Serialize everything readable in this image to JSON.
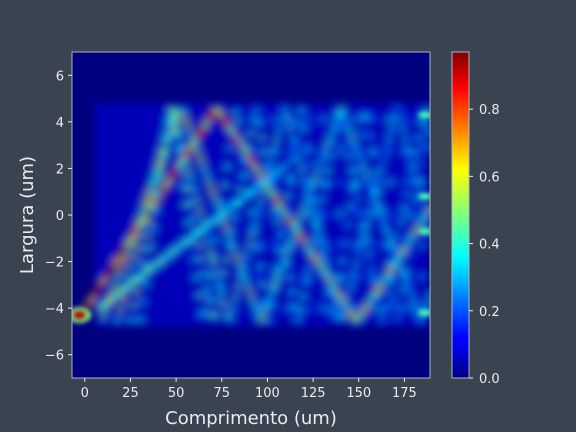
{
  "chart_data": {
    "type": "heatmap",
    "xlabel": "Comprimento (um)",
    "ylabel": "Largura (um)",
    "xlim": [
      -7,
      189
    ],
    "ylim": [
      -7,
      7
    ],
    "x_ticks": [
      0,
      25,
      50,
      75,
      100,
      125,
      150,
      175
    ],
    "y_ticks": [
      -6,
      -4,
      -2,
      0,
      2,
      4,
      6
    ],
    "colorbar": {
      "colormap": "jet",
      "range": [
        0,
        0.97
      ],
      "ticks": [
        0.0,
        0.2,
        0.4,
        0.6,
        0.8
      ],
      "tick_labels": [
        "0.0",
        "0.2",
        "0.4",
        "0.6",
        "0.8"
      ]
    },
    "field": {
      "region_x": [
        0,
        188
      ],
      "region_y": [
        -4.8,
        4.8
      ],
      "input_spot": {
        "x": -3,
        "y": -4.3,
        "value": 0.95
      },
      "output_spots": [
        {
          "x": 188,
          "y": 4.3,
          "value": 0.3
        },
        {
          "x": 188,
          "y": 0.8,
          "value": 0.3
        },
        {
          "x": 188,
          "y": -0.7,
          "value": 0.3
        },
        {
          "x": 188,
          "y": -4.2,
          "value": 0.3
        }
      ],
      "background_value": 0.0
    },
    "grid": false,
    "colors": {
      "figure_background": "#3a4350",
      "axes_spine": "#aab4c4",
      "tick_text": "#e8ecf2"
    }
  }
}
